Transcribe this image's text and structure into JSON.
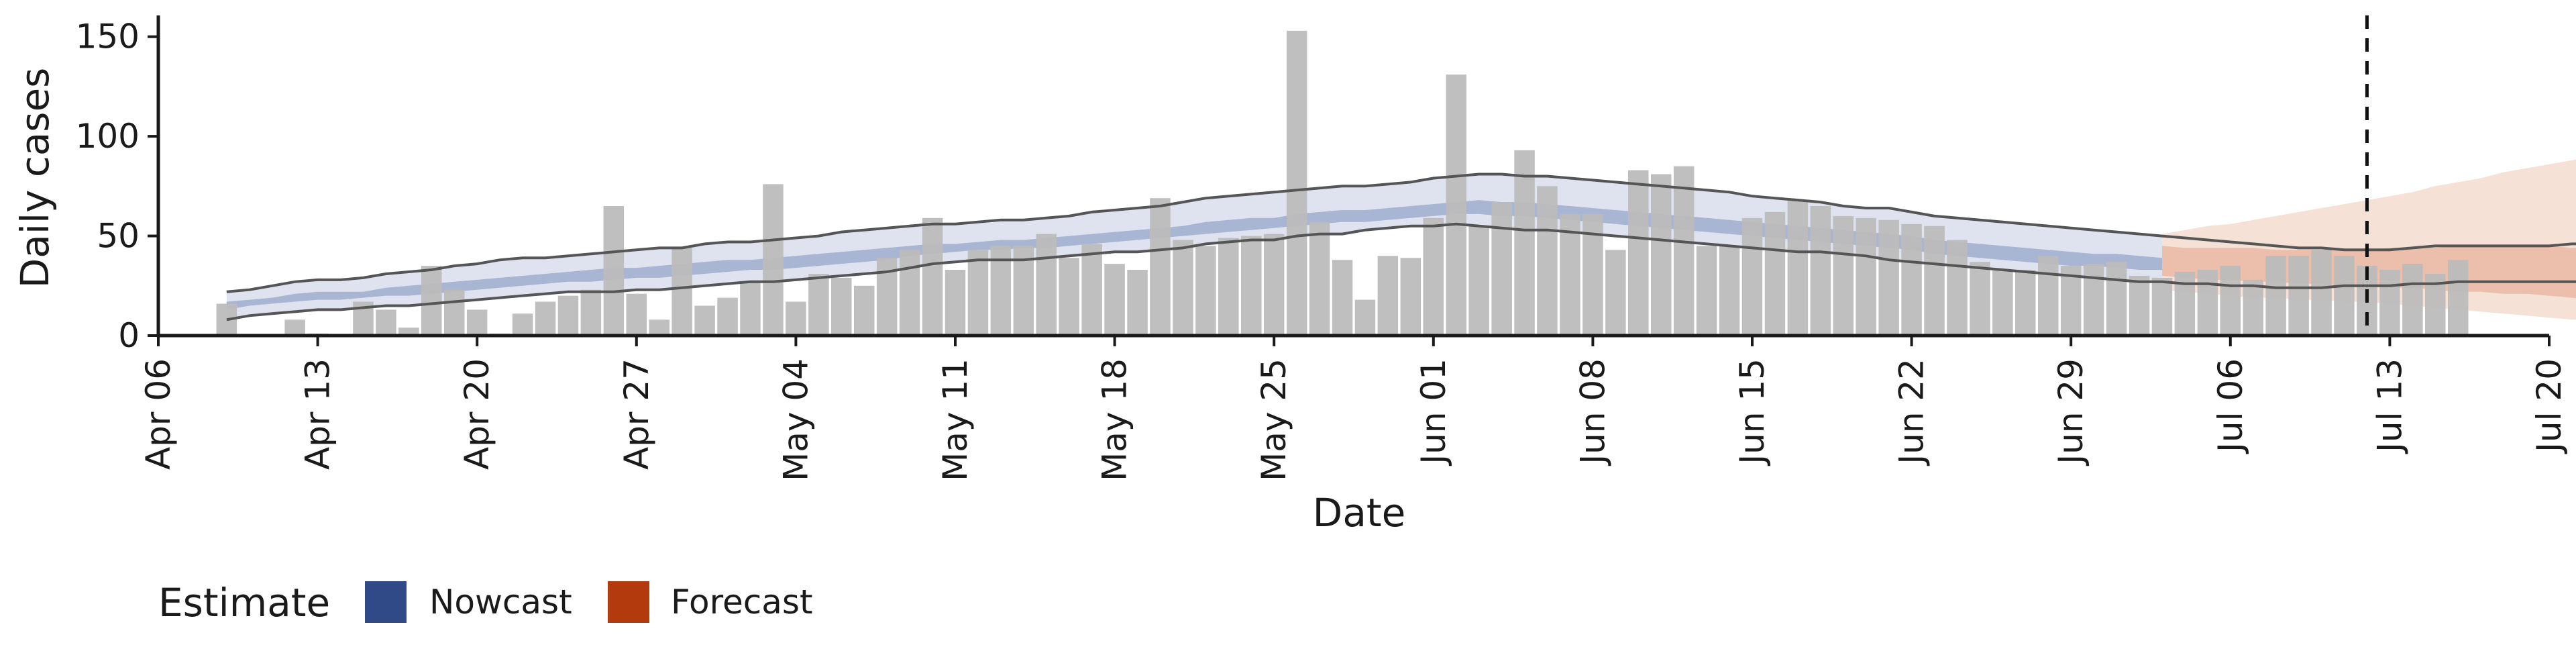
{
  "chart_data": {
    "type": "bar",
    "xlabel": "Date",
    "ylabel": "Daily cases",
    "ylim": [
      0,
      160
    ],
    "yticks": [
      0,
      50,
      100,
      150
    ],
    "xlim": [
      "2020-04-06",
      "2020-07-20"
    ],
    "xticks": [
      {
        "date": "2020-04-06",
        "label": "Apr 06"
      },
      {
        "date": "2020-04-13",
        "label": "Apr 13"
      },
      {
        "date": "2020-04-20",
        "label": "Apr 20"
      },
      {
        "date": "2020-04-27",
        "label": "Apr 27"
      },
      {
        "date": "2020-05-04",
        "label": "May 04"
      },
      {
        "date": "2020-05-11",
        "label": "May 11"
      },
      {
        "date": "2020-05-18",
        "label": "May 18"
      },
      {
        "date": "2020-05-25",
        "label": "May 25"
      },
      {
        "date": "2020-06-01",
        "label": "Jun 01"
      },
      {
        "date": "2020-06-08",
        "label": "Jun 08"
      },
      {
        "date": "2020-06-15",
        "label": "Jun 15"
      },
      {
        "date": "2020-06-22",
        "label": "Jun 22"
      },
      {
        "date": "2020-06-29",
        "label": "Jun 29"
      },
      {
        "date": "2020-07-06",
        "label": "Jul 06"
      },
      {
        "date": "2020-07-13",
        "label": "Jul 13"
      },
      {
        "date": "2020-07-20",
        "label": "Jul 20"
      }
    ],
    "bar_start_date": "2020-04-09",
    "bar_values": [
      16,
      0,
      0,
      8,
      1,
      0,
      17,
      13,
      4,
      35,
      23,
      13,
      1,
      11,
      17,
      20,
      23,
      65,
      21,
      8,
      44,
      15,
      19,
      27,
      76,
      17,
      31,
      29,
      25,
      39,
      43,
      59,
      33,
      43,
      45,
      45,
      51,
      39,
      46,
      36,
      33,
      69,
      48,
      45,
      49,
      50,
      51,
      153,
      57,
      38,
      18,
      40,
      39,
      59,
      131,
      55,
      67,
      93,
      75,
      61,
      61,
      43,
      83,
      81,
      85,
      45,
      45,
      59,
      62,
      68,
      65,
      60,
      59,
      58,
      56,
      55,
      48,
      37,
      33,
      33,
      40,
      35,
      36,
      37,
      30,
      29,
      32,
      33,
      35,
      28,
      40,
      40,
      43,
      40,
      35,
      33,
      36,
      31,
      38
    ],
    "series": [
      {
        "name": "Nowcast",
        "start_date": "2020-04-09",
        "outer_upper": [
          22,
          23,
          25,
          27,
          28,
          28,
          29,
          31,
          32,
          33,
          35,
          36,
          38,
          39,
          39,
          40,
          41,
          42,
          43,
          44,
          44,
          46,
          47,
          47,
          48,
          49,
          50,
          52,
          53,
          54,
          55,
          56,
          56,
          57,
          58,
          58,
          59,
          60,
          62,
          63,
          64,
          65,
          67,
          69,
          70,
          71,
          72,
          73,
          74,
          75,
          75,
          76,
          77,
          79,
          80,
          81,
          81,
          80,
          80,
          79,
          78,
          77,
          76,
          75,
          74,
          73,
          72,
          70,
          69,
          68,
          67,
          65,
          64,
          64,
          62,
          60,
          59,
          58,
          57,
          56,
          55,
          54,
          53,
          52,
          51,
          50,
          49,
          48,
          47,
          46,
          45,
          44,
          44,
          43,
          43,
          43,
          44,
          45,
          45,
          45,
          45,
          45,
          45,
          46,
          46,
          47,
          49,
          49,
          50
        ],
        "outer_lower": [
          8,
          10,
          11,
          12,
          13,
          13,
          14,
          15,
          15,
          16,
          17,
          18,
          19,
          20,
          21,
          22,
          22,
          22,
          23,
          23,
          24,
          25,
          26,
          27,
          27,
          28,
          29,
          30,
          31,
          32,
          34,
          36,
          37,
          38,
          38,
          38,
          39,
          40,
          41,
          42,
          42,
          43,
          44,
          46,
          47,
          48,
          48,
          50,
          51,
          51,
          53,
          54,
          55,
          55,
          56,
          55,
          54,
          53,
          53,
          52,
          51,
          50,
          49,
          48,
          47,
          46,
          45,
          44,
          43,
          42,
          42,
          41,
          40,
          38,
          37,
          36,
          35,
          34,
          33,
          32,
          31,
          30,
          29,
          28,
          27,
          27,
          26,
          26,
          25,
          25,
          24,
          24,
          24,
          25,
          25,
          25,
          26,
          26,
          27,
          27,
          27,
          27,
          27,
          27,
          27,
          27,
          27,
          27,
          27
        ],
        "inner_upper": [
          17,
          18,
          19,
          21,
          22,
          22,
          22,
          24,
          25,
          26,
          27,
          28,
          29,
          30,
          31,
          32,
          33,
          34,
          34,
          35,
          36,
          37,
          38,
          38,
          39,
          40,
          41,
          42,
          43,
          44,
          45,
          46,
          46,
          47,
          48,
          48,
          49,
          50,
          51,
          52,
          53,
          54,
          55,
          57,
          58,
          59,
          59,
          61,
          62,
          63,
          63,
          64,
          65,
          66,
          67,
          68,
          67,
          67,
          66,
          65,
          64,
          63,
          62,
          61,
          60,
          59,
          58,
          57,
          56,
          55,
          54,
          53,
          52,
          51,
          50,
          48,
          47,
          46,
          45,
          44,
          43,
          42,
          41,
          41,
          40,
          39,
          38,
          38,
          37,
          36,
          35,
          35,
          34,
          34,
          34,
          34,
          35,
          36,
          36,
          36,
          36,
          36,
          37,
          37,
          37,
          37,
          38,
          39,
          40
        ],
        "inner_lower": [
          13,
          15,
          16,
          17,
          18,
          18,
          19,
          20,
          20,
          21,
          22,
          23,
          24,
          25,
          26,
          27,
          27,
          28,
          29,
          29,
          30,
          31,
          32,
          33,
          33,
          34,
          35,
          36,
          37,
          38,
          40,
          41,
          42,
          43,
          43,
          44,
          44,
          45,
          46,
          47,
          48,
          49,
          50,
          51,
          52,
          53,
          54,
          55,
          56,
          57,
          57,
          58,
          59,
          60,
          61,
          61,
          60,
          60,
          59,
          58,
          57,
          56,
          55,
          54,
          53,
          52,
          51,
          50,
          49,
          48,
          47,
          46,
          45,
          44,
          43,
          41,
          40,
          39,
          38,
          37,
          36,
          35,
          35,
          34,
          33,
          33,
          32,
          31,
          31,
          30,
          30,
          29,
          29,
          29,
          29,
          29,
          30,
          30,
          31,
          31,
          31,
          31,
          32,
          32,
          32,
          32,
          33,
          33,
          34
        ]
      },
      {
        "name": "Forecast",
        "start_date": "2020-07-03",
        "outer_upper": [
          51,
          53,
          55,
          56,
          58,
          60,
          62,
          64,
          66,
          68,
          70,
          72,
          75,
          77,
          79,
          82,
          84,
          86,
          88,
          90
        ],
        "outer_lower": [
          23,
          22,
          21,
          20,
          19,
          19,
          18,
          18,
          17,
          17,
          16,
          15,
          14,
          13,
          12,
          11,
          10,
          9,
          8,
          8
        ],
        "inner_upper": [
          45,
          44,
          44,
          44,
          44,
          43,
          43,
          43,
          43,
          43,
          44,
          44,
          44,
          45,
          45,
          45,
          45,
          45,
          44,
          44
        ],
        "inner_lower": [
          30,
          29,
          28,
          28,
          27,
          27,
          26,
          26,
          25,
          25,
          24,
          24,
          23,
          22,
          22,
          21,
          21,
          20,
          19,
          18
        ]
      }
    ],
    "vline_date": "2020-07-12",
    "legend": {
      "title": "Estimate",
      "position": "bottom-left",
      "items": [
        {
          "name": "Nowcast",
          "color": "#2f4a87"
        },
        {
          "name": "Forecast",
          "color": "#b33a0c"
        }
      ]
    },
    "grid": false,
    "colors": {
      "bars": "#bcbcbc",
      "nowcast_outer": "#dfe3ef",
      "nowcast_inner": "#a9b6d3",
      "forecast_outer": "#f6e1d7",
      "forecast_inner": "#e9b9a3",
      "bound_lines": "#555555",
      "axis": "#1a1a1a"
    }
  }
}
